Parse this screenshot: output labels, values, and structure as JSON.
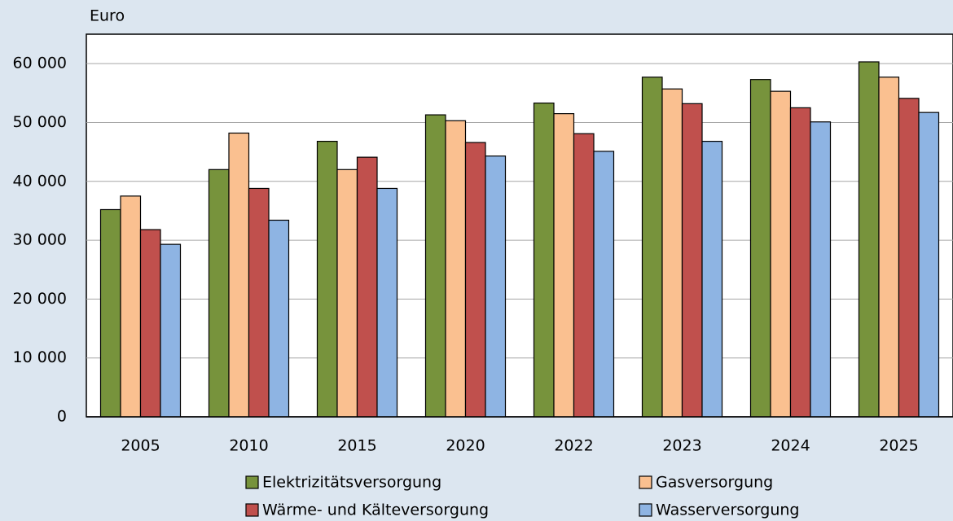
{
  "chart_data": {
    "type": "bar",
    "y_label": "Euro",
    "categories": [
      "2005",
      "2010",
      "2015",
      "2020",
      "2022",
      "2023",
      "2024",
      "2025"
    ],
    "series": [
      {
        "name": "Elektrizitätsversorgung",
        "color": "#77933c",
        "values": [
          35200,
          42000,
          46800,
          51300,
          53300,
          57700,
          57300,
          60300
        ]
      },
      {
        "name": "Gasversorgung",
        "color": "#fac090",
        "values": [
          37500,
          48200,
          42000,
          50300,
          51500,
          55700,
          55300,
          57700
        ]
      },
      {
        "name": "Wärme- und Kälteversorgung",
        "color": "#c0504d",
        "values": [
          31800,
          38800,
          44100,
          46600,
          48100,
          53200,
          52500,
          54100
        ]
      },
      {
        "name": "Wasserversorgung",
        "color": "#8eb4e3",
        "values": [
          29300,
          33400,
          38800,
          44300,
          45100,
          46800,
          50100,
          51700
        ]
      }
    ],
    "ylim": [
      0,
      65000
    ],
    "yticks": [
      0,
      {
        "value": 10000,
        "label": "10 000"
      },
      {
        "value": 20000,
        "label": "20 000"
      },
      {
        "value": 30000,
        "label": "30 000"
      },
      {
        "value": 40000,
        "label": "40 000"
      },
      {
        "value": 50000,
        "label": "50 000"
      },
      {
        "value": 60000,
        "label": "60 000"
      }
    ],
    "grid": true,
    "legend": "bottom"
  }
}
